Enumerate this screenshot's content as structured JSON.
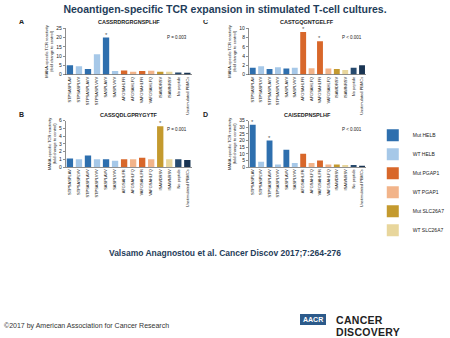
{
  "header": {
    "title": "Neoantigen-specific TCR expansion in stimulated T-cell cultures."
  },
  "citation": "Valsamo Anagnostou et al. Cancer Discov 2017;7:264-276",
  "footer": {
    "copyright": "©2017 by American Association for Cancer Research",
    "publisher_logo": "AACR",
    "journal": "CANCER DISCOVERY"
  },
  "chart_data": [
    {
      "type": "bar",
      "panel": "A",
      "title": "CASSRDRGRGNSPLHF",
      "y_label": [
        "MANA-specific TCR reactivity",
        "(fold change to control)"
      ],
      "categories": [
        "STPSASPLAV",
        "STPSASPLVV",
        "STPSASPLAVV",
        "STPSASPLVVV",
        "SASPLAVV",
        "SASPLVVV",
        "AFGSAHLFR",
        "AFGSAHLFQ",
        "VAFGSAHLFR",
        "VAFGSAHLFQ",
        "ISAWDRSV",
        "ISAWNRSV",
        "No peptide",
        "Unstimulated PBMCs"
      ],
      "ylim": [
        0,
        25
      ],
      "yticks": [
        0,
        5,
        10,
        15,
        20,
        25
      ],
      "annotations": [
        {
          "text": "P = 0.003"
        },
        {
          "text": "*",
          "x": "SASPLAVV"
        }
      ],
      "series": [
        {
          "name": "Mut HELB",
          "color": "#2e6fae",
          "values": [
            5,
            null,
            3,
            null,
            20,
            null,
            null,
            null,
            null,
            null,
            null,
            null,
            null,
            null
          ]
        },
        {
          "name": "WT HELB",
          "color": "#a6c8e8",
          "values": [
            null,
            4.5,
            null,
            11,
            null,
            2,
            null,
            null,
            null,
            null,
            null,
            null,
            null,
            null
          ]
        },
        {
          "name": "Mut PGAP1",
          "color": "#d8672a",
          "values": [
            null,
            null,
            null,
            null,
            null,
            null,
            2.2,
            null,
            2,
            null,
            null,
            null,
            null,
            null
          ]
        },
        {
          "name": "WT PGAP1",
          "color": "#f2b48a",
          "values": [
            null,
            null,
            null,
            null,
            null,
            null,
            null,
            1.5,
            null,
            2.1,
            null,
            null,
            null,
            null
          ]
        },
        {
          "name": "Mut SLC26A7",
          "color": "#c49a2e",
          "values": [
            null,
            null,
            null,
            null,
            null,
            null,
            null,
            null,
            null,
            null,
            1.5,
            null,
            null,
            null
          ]
        },
        {
          "name": "WT SLC26A7",
          "color": "#e8d69c",
          "values": [
            null,
            null,
            null,
            null,
            null,
            null,
            null,
            null,
            null,
            null,
            null,
            1.5,
            null,
            null
          ]
        },
        {
          "color": "#274a6e",
          "values": [
            null,
            null,
            null,
            null,
            null,
            null,
            null,
            null,
            null,
            null,
            null,
            null,
            1.2,
            null
          ]
        },
        {
          "color": "#1a3553",
          "values": [
            null,
            null,
            null,
            null,
            null,
            null,
            null,
            null,
            null,
            null,
            null,
            null,
            null,
            1
          ]
        }
      ]
    },
    {
      "type": "bar",
      "panel": "B",
      "title": "CASSQDLGPRYGYTF",
      "y_label": [
        "MANA-specific TCR reactivity",
        "(fold change to control)"
      ],
      "categories": [
        "STPSASPLAV",
        "STPSASPLVV",
        "STPSASPLAVV",
        "STPSASPLVVV",
        "SASPLAVV",
        "SASPLVVV",
        "AFGSAHLFR",
        "AFGSAHLFQ",
        "VAFGSAHLFR",
        "VAFGSAHLFQ",
        "ISAWDRSV",
        "ISAWNRSV",
        "No peptide",
        "Unstimulated PBMCs"
      ],
      "ylim": [
        0,
        6
      ],
      "yticks": [
        0,
        1,
        2,
        3,
        4,
        5,
        6
      ],
      "annotations": [
        {
          "text": "P = 0.001"
        },
        {
          "text": "*",
          "x": "ISAWDRSV"
        }
      ],
      "series": [
        {
          "name": "Mut HELB",
          "color": "#2e6fae",
          "values": [
            1.1,
            null,
            1.5,
            null,
            1.0,
            null,
            null,
            null,
            null,
            null,
            null,
            null,
            null,
            null
          ]
        },
        {
          "name": "WT HELB",
          "color": "#a6c8e8",
          "values": [
            null,
            1.0,
            null,
            1.0,
            null,
            0.8,
            null,
            null,
            null,
            null,
            null,
            null,
            null,
            null
          ]
        },
        {
          "name": "Mut PGAP1",
          "color": "#d8672a",
          "values": [
            null,
            null,
            null,
            null,
            null,
            null,
            1.0,
            null,
            1.2,
            null,
            null,
            null,
            null,
            null
          ]
        },
        {
          "name": "WT PGAP1",
          "color": "#f2b48a",
          "values": [
            null,
            null,
            null,
            null,
            null,
            null,
            null,
            1.0,
            null,
            1.0,
            null,
            null,
            null,
            null
          ]
        },
        {
          "name": "Mut SLC26A7",
          "color": "#c49a2e",
          "values": [
            null,
            null,
            null,
            null,
            null,
            null,
            null,
            null,
            null,
            null,
            5.3,
            null,
            null,
            null
          ]
        },
        {
          "name": "WT SLC26A7",
          "color": "#e8d69c",
          "values": [
            null,
            null,
            null,
            null,
            null,
            null,
            null,
            null,
            null,
            null,
            null,
            1.0,
            null,
            null
          ]
        },
        {
          "color": "#274a6e",
          "values": [
            null,
            null,
            null,
            null,
            null,
            null,
            null,
            null,
            null,
            null,
            null,
            null,
            1.0,
            null
          ]
        },
        {
          "color": "#1a3553",
          "values": [
            null,
            null,
            null,
            null,
            null,
            null,
            null,
            null,
            null,
            null,
            null,
            null,
            null,
            0.9
          ]
        }
      ]
    },
    {
      "type": "bar",
      "panel": "C",
      "title": "CASTGQGNTGELFF",
      "y_label": [
        "MANA-specific TCR reactivity",
        "(fold change to control)"
      ],
      "categories": [
        "STPSASPLAV",
        "STPSASPLVV",
        "STPSASPLAVV",
        "STPSASPLVVV",
        "SASPLAVV",
        "SASPLVVV",
        "AFGSAHLFR",
        "AFGSAHLFQ",
        "VAFGSAHLFR",
        "VAFGSAHLFQ",
        "ISAWDRSV",
        "ISAWNRSV",
        "No peptide",
        "Unstimulated PBMCs"
      ],
      "ylim": [
        0,
        10
      ],
      "yticks": [
        0,
        2,
        4,
        6,
        8,
        10
      ],
      "annotations": [
        {
          "text": "P < 0.001"
        },
        {
          "text": "*",
          "x": "AFGSAHLFR"
        },
        {
          "text": "*",
          "x": "VAFGSAHLFR"
        }
      ],
      "series": [
        {
          "name": "Mut HELB",
          "color": "#2e6fae",
          "values": [
            1.5,
            null,
            1.2,
            null,
            1.3,
            null,
            null,
            null,
            null,
            null,
            null,
            null,
            null,
            null
          ]
        },
        {
          "name": "WT HELB",
          "color": "#a6c8e8",
          "values": [
            null,
            1.8,
            null,
            1.6,
            null,
            1.5,
            null,
            null,
            null,
            null,
            null,
            null,
            null,
            null
          ]
        },
        {
          "name": "Mut PGAP1",
          "color": "#d8672a",
          "values": [
            null,
            null,
            null,
            null,
            null,
            null,
            9.2,
            null,
            7.2,
            null,
            null,
            null,
            null,
            null
          ]
        },
        {
          "name": "WT PGAP1",
          "color": "#f2b48a",
          "values": [
            null,
            null,
            null,
            null,
            null,
            null,
            null,
            1.4,
            null,
            1.3,
            null,
            null,
            null,
            null
          ]
        },
        {
          "name": "Mut SLC26A7",
          "color": "#c49a2e",
          "values": [
            null,
            null,
            null,
            null,
            null,
            null,
            null,
            null,
            null,
            null,
            1.2,
            null,
            null,
            null
          ]
        },
        {
          "name": "WT SLC26A7",
          "color": "#e8d69c",
          "values": [
            null,
            null,
            null,
            null,
            null,
            null,
            null,
            null,
            null,
            null,
            null,
            1.0,
            null,
            null
          ]
        },
        {
          "color": "#274a6e",
          "values": [
            null,
            null,
            null,
            null,
            null,
            null,
            null,
            null,
            null,
            null,
            null,
            null,
            1.5,
            null
          ]
        },
        {
          "color": "#1a3553",
          "values": [
            null,
            null,
            null,
            null,
            null,
            null,
            null,
            null,
            null,
            null,
            null,
            null,
            null,
            2.0
          ]
        }
      ]
    },
    {
      "type": "bar",
      "panel": "D",
      "title": "CAISEDPNSPLHF",
      "legend": "right",
      "y_label": [
        "MANA-specific TCR reactivity",
        "(fold change to control)"
      ],
      "categories": [
        "STPSASPLAV",
        "STPSASPLVV",
        "STPSASPLAVV",
        "STPSASPLVVV",
        "SASPLAVV",
        "SASPLVVV",
        "AFGSAHLFR",
        "AFGSAHLFQ",
        "VAFGSAHLFR",
        "VAFGSAHLFQ",
        "ISAWDRSV",
        "ISAWNRSV",
        "No peptide",
        "Unstimulated PBMCs"
      ],
      "ylim": [
        0,
        35
      ],
      "yticks": [
        0,
        5,
        10,
        15,
        20,
        25,
        30,
        35
      ],
      "annotations": [
        {
          "text": "P < 0.001"
        },
        {
          "text": "*",
          "x": "STPSASPLAV"
        },
        {
          "text": "*",
          "x": "STPSASPLAVV"
        }
      ],
      "series": [
        {
          "name": "Mut HELB",
          "color": "#2e6fae",
          "values": [
            32,
            null,
            20,
            null,
            13,
            null,
            null,
            null,
            null,
            null,
            null,
            null,
            null,
            null
          ]
        },
        {
          "name": "WT HELB",
          "color": "#a6c8e8",
          "values": [
            null,
            4,
            null,
            2,
            null,
            3,
            null,
            null,
            null,
            null,
            null,
            null,
            null,
            null
          ]
        },
        {
          "name": "Mut PGAP1",
          "color": "#d8672a",
          "values": [
            null,
            null,
            null,
            null,
            null,
            null,
            10,
            null,
            5,
            null,
            null,
            null,
            null,
            null
          ]
        },
        {
          "name": "WT PGAP1",
          "color": "#f2b48a",
          "values": [
            null,
            null,
            null,
            null,
            null,
            null,
            null,
            3,
            null,
            2,
            null,
            null,
            null,
            null
          ]
        },
        {
          "name": "Mut SLC26A7",
          "color": "#c49a2e",
          "values": [
            null,
            null,
            null,
            null,
            null,
            null,
            null,
            null,
            null,
            null,
            2,
            null,
            null,
            null
          ]
        },
        {
          "name": "WT SLC26A7",
          "color": "#e8d69c",
          "values": [
            null,
            null,
            null,
            null,
            null,
            null,
            null,
            null,
            null,
            null,
            null,
            1.5,
            null,
            null
          ]
        },
        {
          "color": "#274a6e",
          "values": [
            null,
            null,
            null,
            null,
            null,
            null,
            null,
            null,
            null,
            null,
            null,
            null,
            1.5,
            null
          ]
        },
        {
          "color": "#1a3553",
          "values": [
            null,
            null,
            null,
            null,
            null,
            null,
            null,
            null,
            null,
            null,
            null,
            null,
            null,
            1
          ]
        }
      ]
    }
  ]
}
